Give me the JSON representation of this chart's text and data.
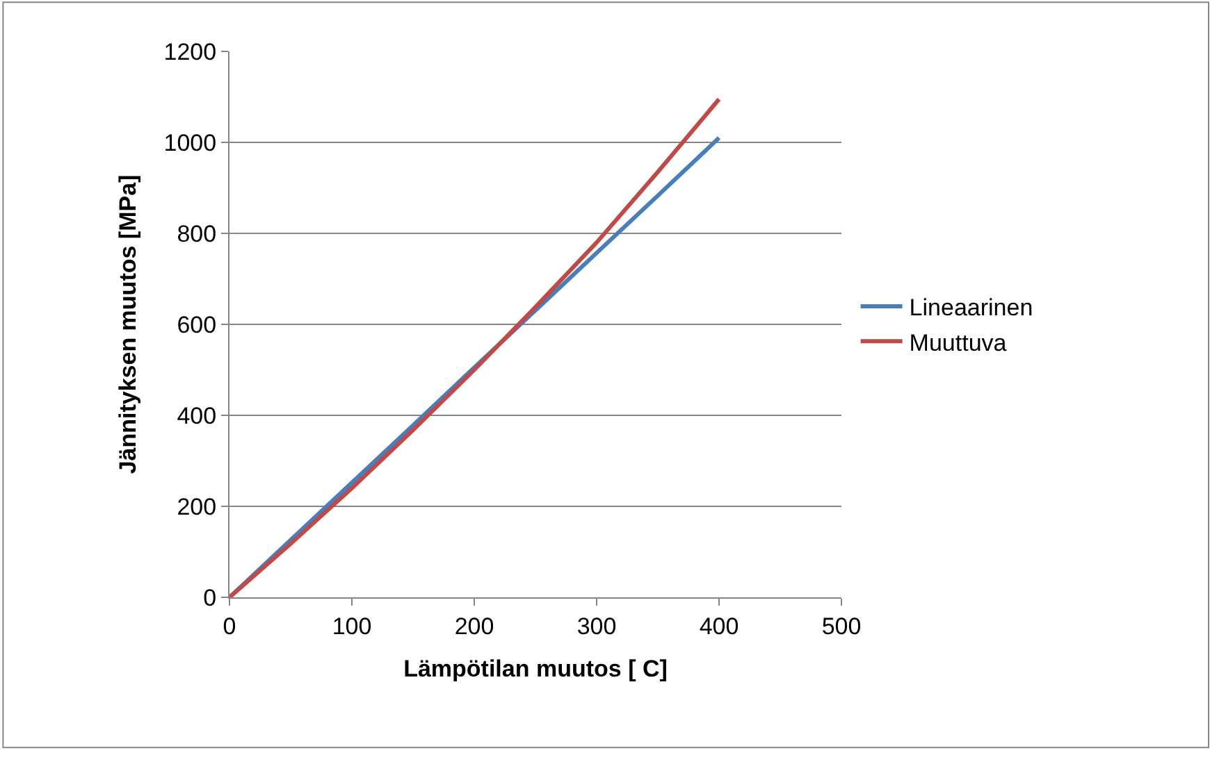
{
  "chart_data": {
    "type": "line",
    "xlabel": "Lämpötilan muutos [ C]",
    "ylabel": "Jännityksen muutos [MPa]",
    "x": [
      0,
      50,
      100,
      150,
      200,
      250,
      300,
      350,
      400
    ],
    "series": [
      {
        "name": "Lineaarinen",
        "color": "#4a7ebb",
        "values": [
          0,
          126,
          252,
          378,
          505,
          631,
          757,
          883,
          1010
        ]
      },
      {
        "name": "Muuttuva",
        "color": "#be4b48",
        "values": [
          0,
          118,
          240,
          368,
          500,
          638,
          780,
          935,
          1095
        ]
      }
    ],
    "xlim": [
      0,
      500
    ],
    "xticks": [
      0,
      100,
      200,
      300,
      400,
      500
    ],
    "ylim": [
      0,
      1200
    ],
    "yticks": [
      0,
      200,
      400,
      600,
      800,
      1000,
      1200
    ],
    "grid": "y",
    "legend": "right",
    "marker": "none",
    "line_style": "solid"
  }
}
